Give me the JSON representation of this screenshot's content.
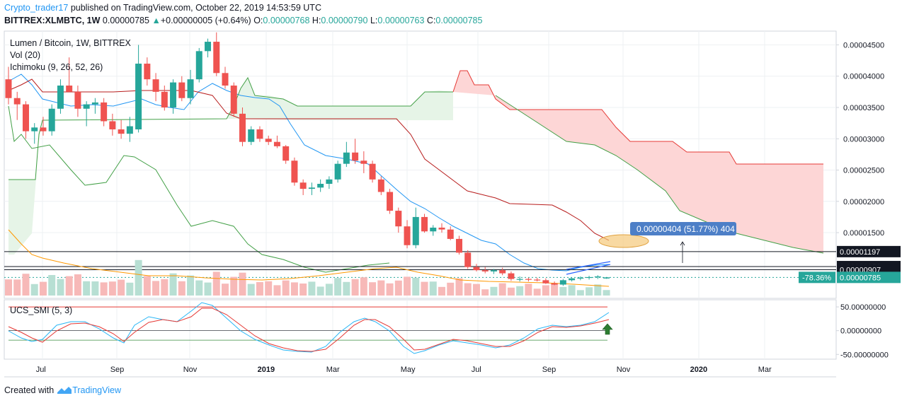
{
  "header": {
    "user": "Crypto_trader17",
    "published": "published on TradingView.com, October 22, 2019 14:53:59 UTC",
    "symbol": "BITTREX:XLMBTC, 1W",
    "last": "0.00000785",
    "arrow": "▲",
    "change": "+0.00000005 (+0.64%)",
    "o_label": "O:",
    "o": "0.00000768",
    "h_label": "H:",
    "h": "0.00000790",
    "l_label": "L:",
    "l": "0.00000763",
    "c_label": "C:",
    "c": "0.00000785"
  },
  "legend": {
    "title": "Lumen / Bitcoin, 1W, BITTREX",
    "vol": "Vol (20)",
    "ichimoku": "Ichimoku (9, 26, 52, 26)",
    "smi": "UCS_SMI (5, 3)"
  },
  "footer": {
    "created": "Created with",
    "brand": "TradingView"
  },
  "colors": {
    "up": "#26a69a",
    "down": "#ef5350",
    "upVol": "#b7dfd3",
    "downVol": "#f7b9b8",
    "tenkan": "#2196f3",
    "kijun": "#b71c1c",
    "spanA": "#43a047",
    "spanB": "#e53935",
    "cloudBull": "#e6f4e7",
    "cloudBear": "#fdd6d6",
    "smiBlue": "#29b6f6",
    "smiRed": "#e53935"
  },
  "chart_data": [
    {
      "type": "candlestick",
      "title": "Lumen / Bitcoin, 1W, BITTREX",
      "y_axis_ticks": [
        "0.00004500",
        "0.00004000",
        "0.00003500",
        "0.00003000",
        "0.00002500",
        "0.00002000",
        "0.00001500"
      ],
      "x_axis_ticks": [
        "Jul",
        "Sep",
        "Nov",
        "2019",
        "Mar",
        "May",
        "Jul",
        "Sep",
        "Nov",
        "2020",
        "Mar"
      ],
      "ylim": [
        4.5e-06,
        4.72e-05
      ],
      "candles": [
        {
          "o": 3.95,
          "h": 4.15,
          "l": 3.55,
          "c": 3.65
        },
        {
          "o": 3.65,
          "h": 3.75,
          "l": 3.3,
          "c": 3.55
        },
        {
          "o": 3.55,
          "h": 3.6,
          "l": 3.0,
          "c": 3.12
        },
        {
          "o": 3.12,
          "h": 3.25,
          "l": 2.92,
          "c": 3.18
        },
        {
          "o": 3.18,
          "h": 3.35,
          "l": 3.05,
          "c": 3.12
        },
        {
          "o": 3.12,
          "h": 3.55,
          "l": 3.05,
          "c": 3.48
        },
        {
          "o": 3.48,
          "h": 3.95,
          "l": 3.4,
          "c": 3.85
        },
        {
          "o": 3.85,
          "h": 4.3,
          "l": 3.75,
          "c": 3.75
        },
        {
          "o": 3.75,
          "h": 3.85,
          "l": 3.35,
          "c": 3.48
        },
        {
          "o": 3.48,
          "h": 3.6,
          "l": 3.2,
          "c": 3.55
        },
        {
          "o": 3.55,
          "h": 3.65,
          "l": 3.4,
          "c": 3.58
        },
        {
          "o": 3.58,
          "h": 3.65,
          "l": 3.2,
          "c": 3.28
        },
        {
          "o": 3.28,
          "h": 3.4,
          "l": 3.05,
          "c": 3.15
        },
        {
          "o": 3.15,
          "h": 3.3,
          "l": 3.0,
          "c": 3.08
        },
        {
          "o": 3.08,
          "h": 3.35,
          "l": 2.95,
          "c": 3.2
        },
        {
          "o": 3.15,
          "h": 4.5,
          "l": 3.1,
          "c": 4.2
        },
        {
          "o": 4.2,
          "h": 4.3,
          "l": 3.85,
          "c": 3.95
        },
        {
          "o": 3.95,
          "h": 4.05,
          "l": 3.6,
          "c": 3.75
        },
        {
          "o": 3.75,
          "h": 3.85,
          "l": 3.45,
          "c": 3.5
        },
        {
          "o": 3.5,
          "h": 3.95,
          "l": 3.4,
          "c": 3.9
        },
        {
          "o": 3.9,
          "h": 4.0,
          "l": 3.6,
          "c": 3.65
        },
        {
          "o": 3.65,
          "h": 4.1,
          "l": 3.55,
          "c": 3.95
        },
        {
          "o": 3.95,
          "h": 4.45,
          "l": 3.9,
          "c": 4.4
        },
        {
          "o": 4.4,
          "h": 4.6,
          "l": 4.3,
          "c": 4.55
        },
        {
          "o": 4.55,
          "h": 4.7,
          "l": 4.0,
          "c": 4.05
        },
        {
          "o": 4.05,
          "h": 4.15,
          "l": 3.8,
          "c": 3.85
        },
        {
          "o": 3.85,
          "h": 3.9,
          "l": 3.35,
          "c": 3.4
        },
        {
          "o": 3.4,
          "h": 3.5,
          "l": 2.88,
          "c": 2.95
        },
        {
          "o": 2.95,
          "h": 3.2,
          "l": 2.9,
          "c": 3.15
        },
        {
          "o": 3.15,
          "h": 3.2,
          "l": 2.95,
          "c": 3.0
        },
        {
          "o": 3.0,
          "h": 3.05,
          "l": 2.9,
          "c": 2.95
        },
        {
          "o": 2.95,
          "h": 3.05,
          "l": 2.85,
          "c": 2.88
        },
        {
          "o": 2.88,
          "h": 2.9,
          "l": 2.6,
          "c": 2.65
        },
        {
          "o": 2.65,
          "h": 2.7,
          "l": 2.25,
          "c": 2.3
        },
        {
          "o": 2.3,
          "h": 2.35,
          "l": 2.1,
          "c": 2.2
        },
        {
          "o": 2.2,
          "h": 2.3,
          "l": 2.1,
          "c": 2.22
        },
        {
          "o": 2.22,
          "h": 2.35,
          "l": 2.15,
          "c": 2.28
        },
        {
          "o": 2.28,
          "h": 2.4,
          "l": 2.2,
          "c": 2.35
        },
        {
          "o": 2.35,
          "h": 2.65,
          "l": 2.3,
          "c": 2.6
        },
        {
          "o": 2.6,
          "h": 2.95,
          "l": 2.55,
          "c": 2.78
        },
        {
          "o": 2.78,
          "h": 3.0,
          "l": 2.6,
          "c": 2.65
        },
        {
          "o": 2.65,
          "h": 2.8,
          "l": 2.45,
          "c": 2.6
        },
        {
          "o": 2.6,
          "h": 2.65,
          "l": 2.3,
          "c": 2.35
        },
        {
          "o": 2.35,
          "h": 2.4,
          "l": 2.1,
          "c": 2.15
        },
        {
          "o": 2.15,
          "h": 2.2,
          "l": 1.8,
          "c": 1.85
        },
        {
          "o": 1.85,
          "h": 1.9,
          "l": 1.5,
          "c": 1.6
        },
        {
          "o": 1.6,
          "h": 1.7,
          "l": 1.25,
          "c": 1.3
        },
        {
          "o": 1.3,
          "h": 1.9,
          "l": 1.25,
          "c": 1.75
        },
        {
          "o": 1.75,
          "h": 1.8,
          "l": 1.5,
          "c": 1.52
        },
        {
          "o": 1.52,
          "h": 1.62,
          "l": 1.45,
          "c": 1.58
        },
        {
          "o": 1.58,
          "h": 1.65,
          "l": 1.5,
          "c": 1.55
        },
        {
          "o": 1.55,
          "h": 1.6,
          "l": 1.38,
          "c": 1.4
        },
        {
          "o": 1.4,
          "h": 1.45,
          "l": 1.15,
          "c": 1.18
        },
        {
          "o": 1.18,
          "h": 1.22,
          "l": 0.92,
          "c": 0.95
        },
        {
          "o": 0.95,
          "h": 1.0,
          "l": 0.88,
          "c": 0.9
        },
        {
          "o": 0.9,
          "h": 0.95,
          "l": 0.85,
          "c": 0.88
        },
        {
          "o": 0.88,
          "h": 0.92,
          "l": 0.84,
          "c": 0.9
        },
        {
          "o": 0.9,
          "h": 0.94,
          "l": 0.82,
          "c": 0.85
        },
        {
          "o": 0.85,
          "h": 0.88,
          "l": 0.73,
          "c": 0.76
        },
        {
          "o": 0.76,
          "h": 0.8,
          "l": 0.72,
          "c": 0.76
        },
        {
          "o": 0.76,
          "h": 0.78,
          "l": 0.72,
          "c": 0.75
        },
        {
          "o": 0.75,
          "h": 0.78,
          "l": 0.72,
          "c": 0.74
        },
        {
          "o": 0.74,
          "h": 0.77,
          "l": 0.68,
          "c": 0.69
        },
        {
          "o": 0.69,
          "h": 0.72,
          "l": 0.66,
          "c": 0.67
        },
        {
          "o": 0.67,
          "h": 0.76,
          "l": 0.65,
          "c": 0.74
        },
        {
          "o": 0.74,
          "h": 0.78,
          "l": 0.72,
          "c": 0.77
        },
        {
          "o": 0.77,
          "h": 0.8,
          "l": 0.74,
          "c": 0.78
        },
        {
          "o": 0.78,
          "h": 0.81,
          "l": 0.75,
          "c": 0.79
        },
        {
          "o": 0.79,
          "h": 0.82,
          "l": 0.76,
          "c": 0.8
        },
        {
          "o": 0.768,
          "h": 0.79,
          "l": 0.763,
          "c": 0.785
        }
      ],
      "price_unit": "0.00001",
      "horizontal_lines": [
        "0.00001197",
        "0.00000958",
        "0.00000907"
      ],
      "price_labels": [
        {
          "text": "0.00001197",
          "style": "dark"
        },
        {
          "text": "0.00000958",
          "style": "dark"
        },
        {
          "text": "0.00000907",
          "style": "dark"
        },
        {
          "text": "0.00000785",
          "style": "green"
        }
      ],
      "percent_badge": "-78.36%",
      "measure_label": "0.00000404 (51.77%) 404"
    },
    {
      "type": "line",
      "name": "UCS_SMI (5, 3)",
      "y_axis_ticks": [
        "50.00000000",
        "0.00000000",
        "-50.00000000"
      ],
      "ylim": [
        -60,
        65
      ]
    }
  ]
}
